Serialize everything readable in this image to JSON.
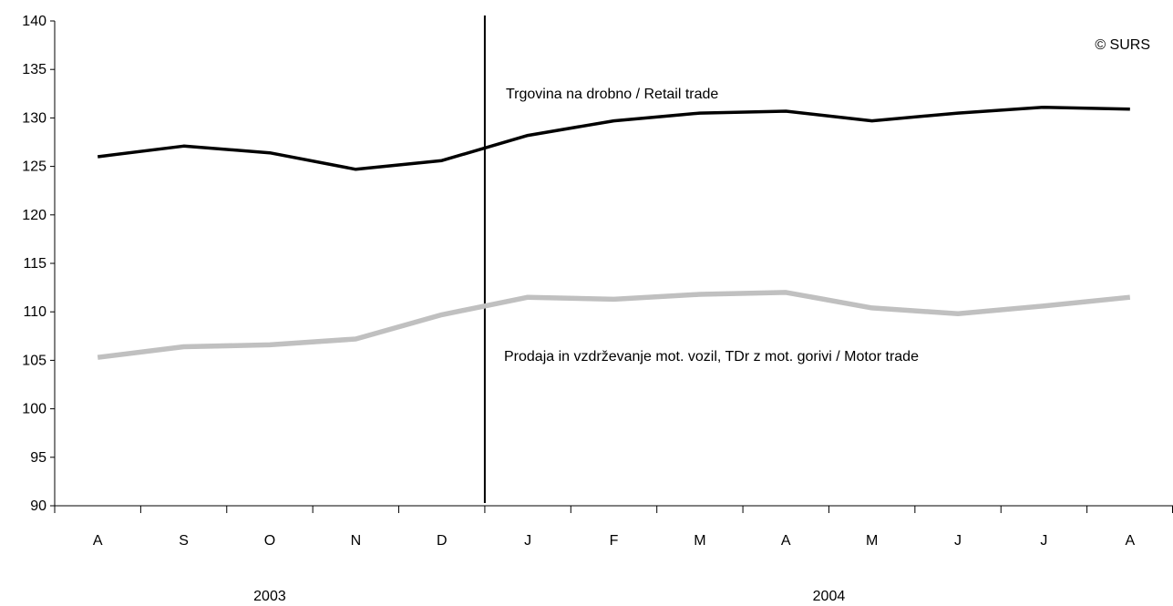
{
  "chart_data": {
    "type": "line",
    "title": "",
    "xlabel": "",
    "ylabel": "",
    "ylim": [
      90,
      140
    ],
    "yticks": [
      90,
      95,
      100,
      105,
      110,
      115,
      120,
      125,
      130,
      135,
      140
    ],
    "grid": false,
    "categories": [
      "A",
      "S",
      "O",
      "N",
      "D",
      "J",
      "F",
      "M",
      "A",
      "M",
      "J",
      "J",
      "A"
    ],
    "year_labels": [
      {
        "label": "2003",
        "span": [
          0,
          4
        ]
      },
      {
        "label": "2004",
        "span": [
          5,
          12
        ]
      }
    ],
    "divider_after_index": 4,
    "series": [
      {
        "name": "Trgovina na drobno / Retail trade",
        "color": "#000000",
        "values": [
          126.0,
          127.1,
          126.4,
          124.7,
          125.6,
          128.2,
          129.7,
          130.5,
          130.7,
          129.7,
          130.5,
          131.1,
          130.9
        ]
      },
      {
        "name": "Prodaja in vzdrževanje mot. vozil, TDr z mot. gorivi / Motor trade",
        "color": "#c0c0c0",
        "values": [
          105.3,
          106.4,
          106.6,
          107.2,
          109.7,
          111.5,
          111.3,
          111.8,
          112.0,
          110.4,
          109.8,
          110.6,
          111.5
        ]
      }
    ],
    "annotations": {
      "copyright": "© SURS"
    }
  }
}
